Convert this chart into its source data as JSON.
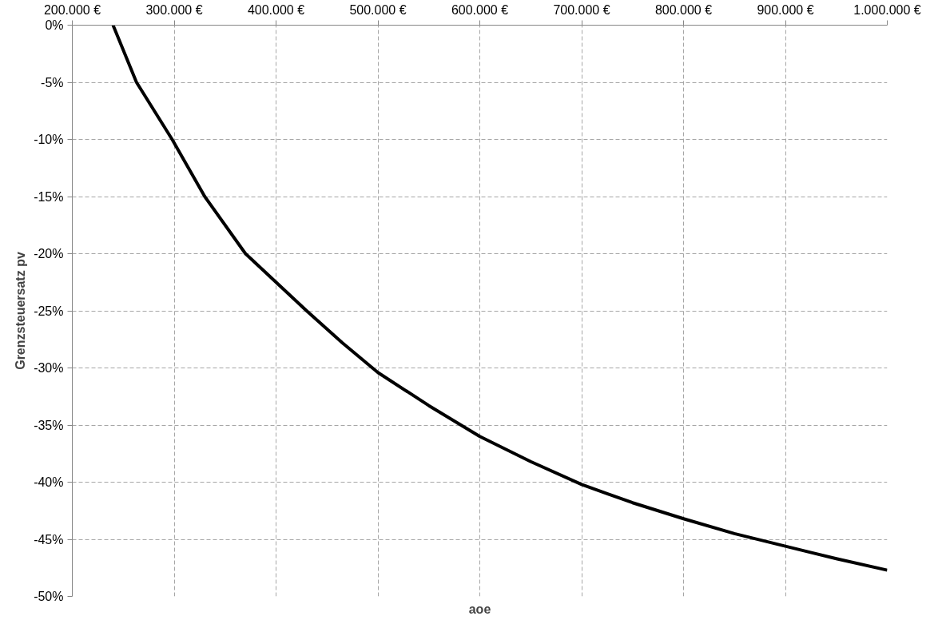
{
  "chart_data": {
    "type": "line",
    "xlabel": "aoe",
    "ylabel": "Grenzsteuersatz pv",
    "x": [
      240000,
      263000,
      298000,
      330000,
      370000,
      430000,
      465000,
      500000,
      550000,
      600000,
      650000,
      700000,
      750000,
      800000,
      850000,
      900000,
      950000,
      1000000
    ],
    "series": [
      {
        "color": "#000000",
        "values": [
          0,
          -5,
          -10,
          -15,
          -20,
          -25,
          -27.8,
          -30.4,
          -33.3,
          -36,
          -38.2,
          -40.2,
          -41.8,
          -43.2,
          -44.5,
          -45.6,
          -46.7,
          -47.7
        ]
      }
    ],
    "xlim": [
      200000,
      1000000
    ],
    "xticks": [
      {
        "value": 200000,
        "label": "200.000 €"
      },
      {
        "value": 300000,
        "label": "300.000 €"
      },
      {
        "value": 400000,
        "label": "400.000 €"
      },
      {
        "value": 500000,
        "label": "500.000 €"
      },
      {
        "value": 600000,
        "label": "600.000 €"
      },
      {
        "value": 700000,
        "label": "700.000 €"
      },
      {
        "value": 800000,
        "label": "800.000 €"
      },
      {
        "value": 900000,
        "label": "900.000 €"
      },
      {
        "value": 1000000,
        "label": "1.000.000 €"
      }
    ],
    "ylim": [
      -50,
      0
    ],
    "yticks": [
      {
        "value": 0,
        "label": "0%"
      },
      {
        "value": -5,
        "label": "-5%"
      },
      {
        "value": -10,
        "label": "-10%"
      },
      {
        "value": -15,
        "label": "-15%"
      },
      {
        "value": -20,
        "label": "-20%"
      },
      {
        "value": -25,
        "label": "-25%"
      },
      {
        "value": -30,
        "label": "-30%"
      },
      {
        "value": -35,
        "label": "-35%"
      },
      {
        "value": -40,
        "label": "-40%"
      },
      {
        "value": -45,
        "label": "-45%"
      },
      {
        "value": -50,
        "label": "-50%"
      }
    ],
    "grid": true,
    "line_style": "solid",
    "marker": "none"
  }
}
